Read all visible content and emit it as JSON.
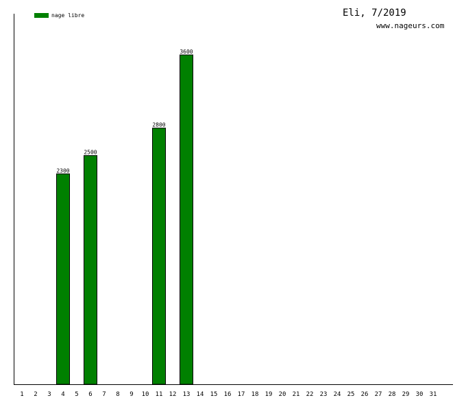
{
  "chart_data": {
    "type": "bar",
    "title": "Eli, 7/2019",
    "subtitle": "www.nageurs.com",
    "legend": {
      "placement": "top-left",
      "series_color": "#008000"
    },
    "series": [
      {
        "name": "nage libre",
        "color": "#008000"
      }
    ],
    "categories": [
      "1",
      "2",
      "3",
      "4",
      "5",
      "6",
      "7",
      "8",
      "9",
      "10",
      "11",
      "12",
      "13",
      "14",
      "15",
      "16",
      "17",
      "18",
      "19",
      "20",
      "21",
      "22",
      "23",
      "24",
      "25",
      "26",
      "27",
      "28",
      "29",
      "30",
      "31"
    ],
    "values": [
      null,
      null,
      null,
      2300,
      null,
      2500,
      null,
      null,
      null,
      null,
      2800,
      null,
      3600,
      null,
      null,
      null,
      null,
      null,
      null,
      null,
      null,
      null,
      null,
      null,
      null,
      null,
      null,
      null,
      null,
      null,
      null
    ],
    "ylim": [
      0,
      4050
    ],
    "grid": false,
    "xlabel": "",
    "ylabel": ""
  }
}
